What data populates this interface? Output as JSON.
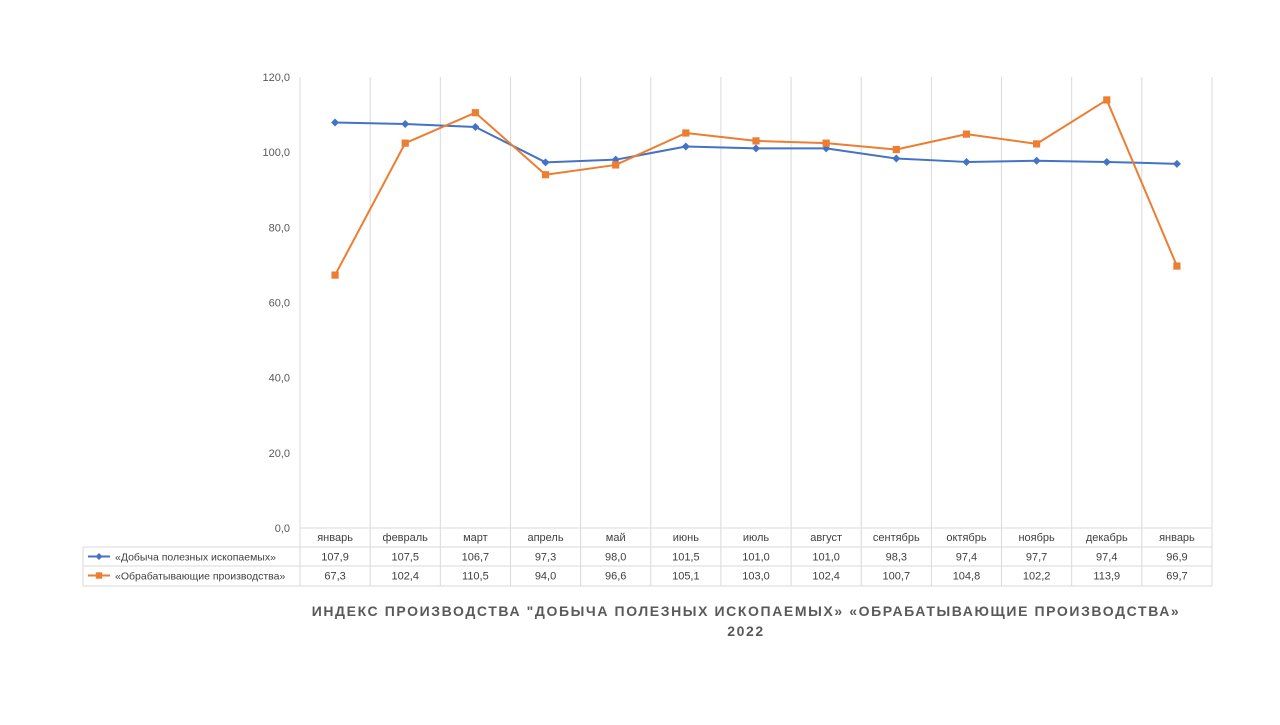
{
  "chart_data": {
    "type": "line",
    "title": "ИНДЕКС ПРОИЗВОДСТВА \"ДОБЫЧА ПОЛЕЗНЫХ ИСКОПАЕМЫХ» «ОБРАБАТЫВАЮЩИЕ ПРОИЗВОДСТВА»",
    "subtitle": "2022",
    "categories": [
      "январь",
      "февраль",
      "март",
      "апрель",
      "май",
      "июнь",
      "июль",
      "август",
      "сентябрь",
      "октябрь",
      "ноябрь",
      "декабрь",
      "январь"
    ],
    "series": [
      {
        "name": "«Добыча полезных ископаемых»",
        "color": "#4472C4",
        "marker": "diamond",
        "values": [
          107.9,
          107.5,
          106.7,
          97.3,
          98.0,
          101.5,
          101.0,
          101.0,
          98.3,
          97.4,
          97.7,
          97.4,
          96.9
        ],
        "labels": [
          "107,9",
          "107,5",
          "106,7",
          "97,3",
          "98,0",
          "101,5",
          "101,0",
          "101,0",
          "98,3",
          "97,4",
          "97,7",
          "97,4",
          "96,9"
        ]
      },
      {
        "name": "«Обрабатывающие производства»",
        "color": "#ED7D31",
        "marker": "square",
        "values": [
          67.3,
          102.4,
          110.5,
          94.0,
          96.6,
          105.1,
          103.0,
          102.4,
          100.7,
          104.8,
          102.2,
          113.9,
          69.7
        ],
        "labels": [
          "67,3",
          "102,4",
          "110,5",
          "94,0",
          "96,6",
          "105,1",
          "103,0",
          "102,4",
          "100,7",
          "104,8",
          "102,2",
          "113,9",
          "69,7"
        ]
      }
    ],
    "ylim": [
      0,
      120
    ],
    "yticks": [
      0,
      20,
      40,
      60,
      80,
      100,
      120
    ],
    "ytick_labels": [
      "0,0",
      "20,0",
      "40,0",
      "60,0",
      "80,0",
      "100,0",
      "120,0"
    ],
    "xlabel": "",
    "ylabel": "",
    "grid": "vertical",
    "legend": "data-table"
  }
}
